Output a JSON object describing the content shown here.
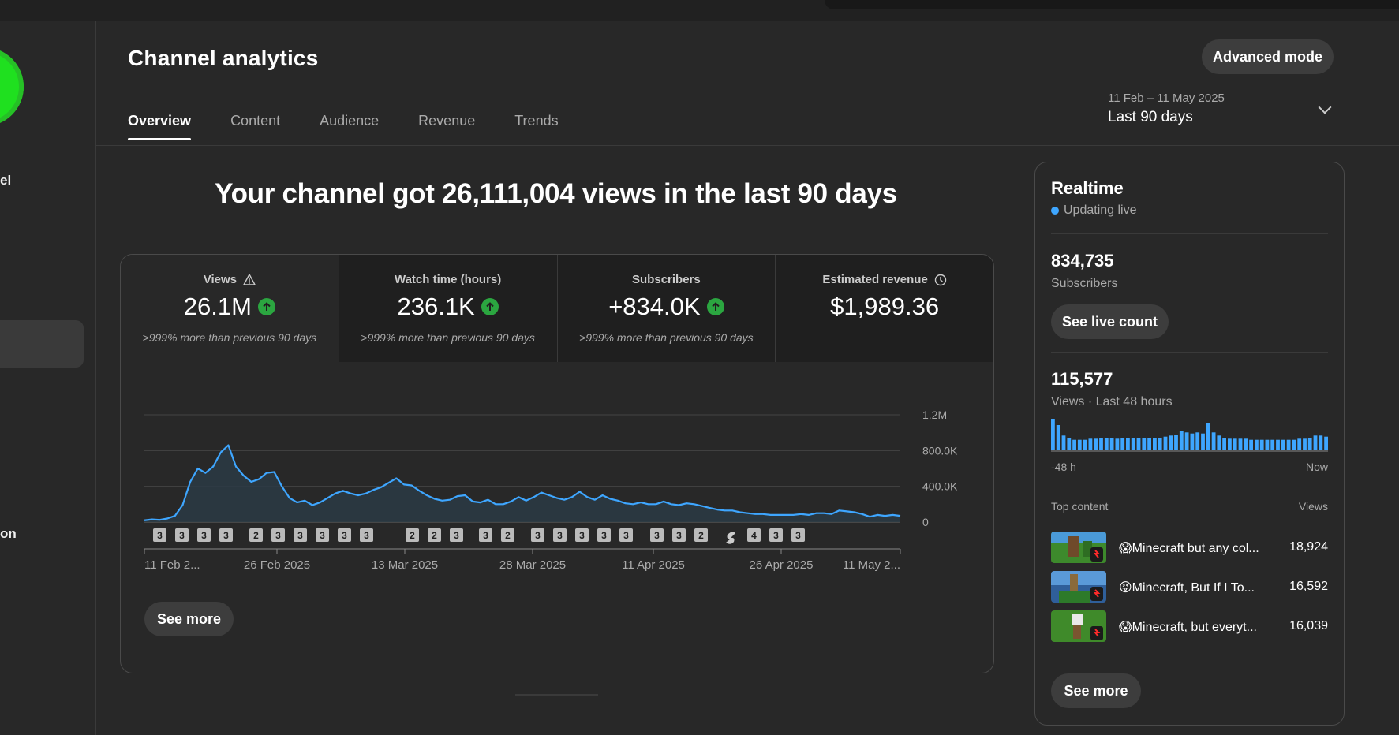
{
  "header": {
    "title": "Channel analytics",
    "advanced_mode": "Advanced mode",
    "tabs": [
      {
        "label": "Overview"
      },
      {
        "label": "Content"
      },
      {
        "label": "Audience"
      },
      {
        "label": "Revenue"
      },
      {
        "label": "Trends"
      }
    ],
    "active_tab": "Overview",
    "date_range": {
      "dates": "11 Feb – 11 May 2025",
      "label": "Last 90 days"
    }
  },
  "sidebar": {
    "label_top": "el",
    "label_bottom": "on"
  },
  "headline": "Your channel got 26,111,004 views in the last 90 days",
  "metrics": [
    {
      "label": "Views",
      "value": "26.1M",
      "sub": ">999% more than previous 90 days",
      "icon": "warning-icon",
      "trend": "up"
    },
    {
      "label": "Watch time (hours)",
      "value": "236.1K",
      "sub": ">999% more than previous 90 days",
      "trend": "up"
    },
    {
      "label": "Subscribers",
      "value": "+834.0K",
      "sub": ">999% more than previous 90 days",
      "trend": "up"
    },
    {
      "label": "Estimated revenue",
      "value": "$1,989.36",
      "icon": "clock-icon"
    }
  ],
  "chart_data": {
    "type": "area",
    "series": [
      {
        "values": [
          20,
          30,
          25,
          40,
          70,
          190,
          450,
          600,
          550,
          620,
          780,
          860,
          620,
          520,
          450,
          480,
          550,
          560,
          400,
          270,
          220,
          240,
          190,
          220,
          270,
          320,
          350,
          320,
          300,
          320,
          360,
          390,
          440,
          490,
          420,
          410,
          350,
          300,
          260,
          240,
          250,
          290,
          300,
          230,
          220,
          250,
          200,
          200,
          230,
          280,
          240,
          280,
          330,
          300,
          270,
          250,
          280,
          340,
          280,
          250,
          300,
          260,
          240,
          210,
          200,
          220,
          200,
          200,
          230,
          200,
          190,
          210,
          200,
          180,
          160,
          140,
          130,
          130,
          110,
          100,
          90,
          90,
          80,
          80,
          80,
          80,
          90,
          80,
          100,
          100,
          90,
          130,
          120,
          110,
          90,
          60,
          80,
          70,
          80,
          70
        ]
      }
    ],
    "x_tick_labels": [
      "11 Feb 2...",
      "26 Feb 2025",
      "13 Mar 2025",
      "28 Mar 2025",
      "11 Apr 2025",
      "26 Apr 2025",
      "11 May 2..."
    ],
    "y_tick_labels": [
      "1.2M",
      "800.0K",
      "400.0K",
      "0"
    ],
    "ylim": [
      0,
      1200000
    ],
    "grid": true,
    "upload_markers": [
      "3",
      "3",
      "3",
      "3",
      "2",
      "3",
      "3",
      "3",
      "3",
      "3",
      "2",
      "2",
      "3",
      "3",
      "2",
      "3",
      "3",
      "3",
      "3",
      "3",
      "3",
      "3",
      "2",
      "shorts",
      "4",
      "3",
      "3"
    ]
  },
  "chart_see_more": "See more",
  "realtime": {
    "title": "Realtime",
    "status": "Updating live",
    "subscribers_count": "834,735",
    "subscribers_label": "Subscribers",
    "see_live_count": "See live count",
    "views_count": "115,577",
    "views_label": "Views · Last 48 hours",
    "mini_bars": [
      30,
      24,
      14,
      12,
      10,
      10,
      10,
      11,
      11,
      12,
      12,
      12,
      11,
      12,
      12,
      12,
      12,
      12,
      12,
      12,
      12,
      13,
      14,
      15,
      18,
      17,
      16,
      17,
      16,
      26,
      17,
      14,
      12,
      11,
      11,
      11,
      11,
      10,
      10,
      10,
      10,
      10,
      10,
      10,
      10,
      10,
      11,
      11,
      12,
      14,
      14,
      13
    ],
    "axis_left": "-48 h",
    "axis_right": "Now",
    "top_content_label": "Top content",
    "views_header": "Views",
    "top_content": [
      {
        "title": "😱Minecraft but any col...",
        "views": "18,924"
      },
      {
        "title": "😝Minecraft, But If I To...",
        "views": "16,592"
      },
      {
        "title": "😱Minecraft, but everyt...",
        "views": "16,039"
      }
    ],
    "see_more": "See more"
  },
  "colors": {
    "background": "#282828",
    "line": "#3ea6ff",
    "up": "#2ba640"
  }
}
